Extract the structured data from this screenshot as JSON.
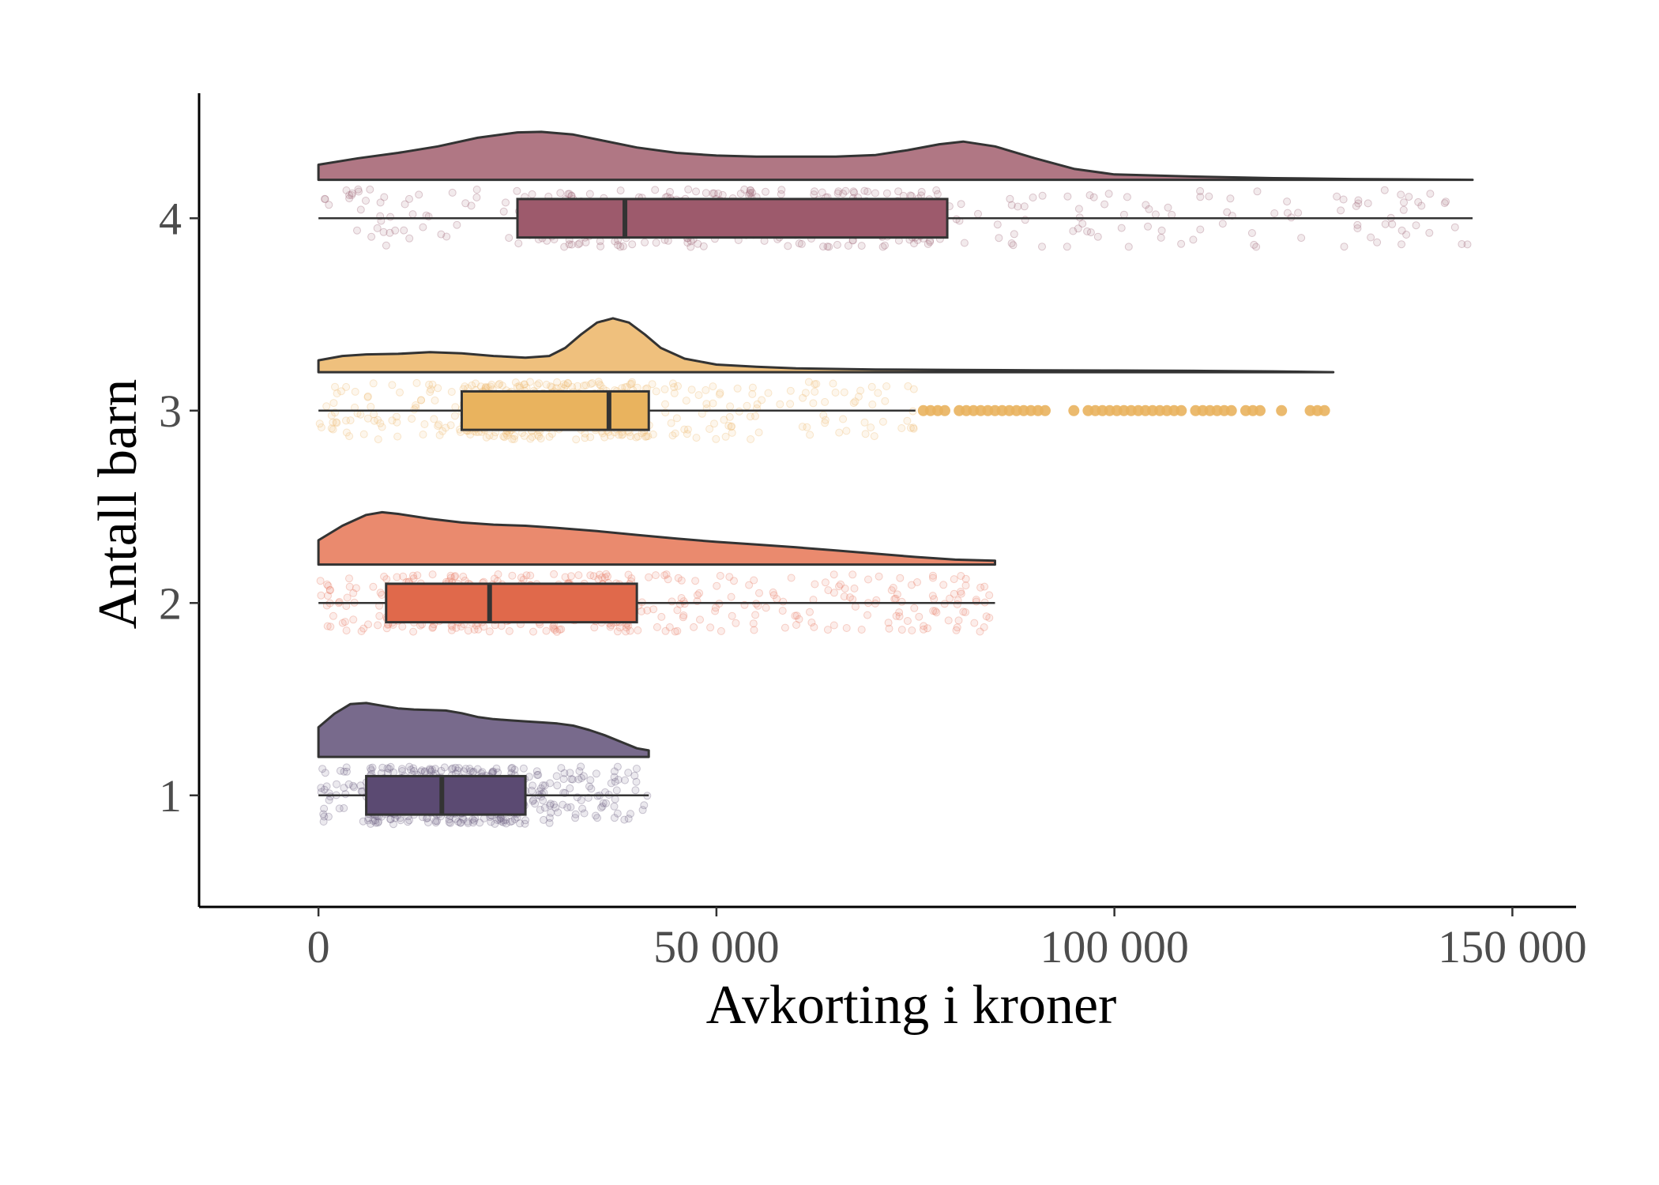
{
  "chart_data": {
    "type": "raincloud",
    "xlabel": "Avkorting i kroner",
    "ylabel": "Antall barn",
    "xlim": [
      -15000,
      158000
    ],
    "ylim": [
      0.42,
      4.65
    ],
    "x_ticks": [
      0,
      50000,
      100000,
      150000
    ],
    "x_tick_labels": [
      "0",
      "50 000",
      "100 000",
      "150 000"
    ],
    "y_ticks": [
      1,
      2,
      3,
      4
    ],
    "y_tick_labels": [
      "1",
      "2",
      "3",
      "4"
    ],
    "grid": false,
    "legend": "none",
    "series": [
      {
        "group": 1,
        "fill": "#786a8c",
        "box_fill": "#5b4a72",
        "point_color": "#6f6385",
        "whisker": [
          0,
          41500
        ],
        "box": {
          "q1": 6000,
          "median": 15500,
          "q3": 26000
        },
        "density": [
          [
            0,
            0.55
          ],
          [
            2000,
            0.8
          ],
          [
            4000,
            0.98
          ],
          [
            6000,
            1.0
          ],
          [
            8000,
            0.95
          ],
          [
            10000,
            0.9
          ],
          [
            12000,
            0.88
          ],
          [
            14000,
            0.87
          ],
          [
            16000,
            0.86
          ],
          [
            18000,
            0.81
          ],
          [
            20000,
            0.74
          ],
          [
            22000,
            0.7
          ],
          [
            24000,
            0.68
          ],
          [
            26000,
            0.66
          ],
          [
            28000,
            0.64
          ],
          [
            30000,
            0.62
          ],
          [
            32000,
            0.58
          ],
          [
            34000,
            0.5
          ],
          [
            36000,
            0.4
          ],
          [
            38000,
            0.28
          ],
          [
            40000,
            0.16
          ],
          [
            41500,
            0.12
          ]
        ]
      },
      {
        "group": 2,
        "fill": "#ea8a6e",
        "box_fill": "#e0694b",
        "point_color": "#e7826a",
        "whisker": [
          0,
          85000
        ],
        "box": {
          "q1": 8500,
          "median": 21500,
          "q3": 40000
        },
        "density": [
          [
            0,
            0.45
          ],
          [
            3000,
            0.72
          ],
          [
            6000,
            0.92
          ],
          [
            8000,
            0.97
          ],
          [
            10000,
            0.94
          ],
          [
            14000,
            0.85
          ],
          [
            18000,
            0.78
          ],
          [
            22000,
            0.74
          ],
          [
            26000,
            0.72
          ],
          [
            30000,
            0.68
          ],
          [
            35000,
            0.62
          ],
          [
            40000,
            0.55
          ],
          [
            45000,
            0.48
          ],
          [
            50000,
            0.42
          ],
          [
            55000,
            0.37
          ],
          [
            60000,
            0.32
          ],
          [
            65000,
            0.26
          ],
          [
            70000,
            0.2
          ],
          [
            75000,
            0.14
          ],
          [
            80000,
            0.09
          ],
          [
            85000,
            0.07
          ]
        ]
      },
      {
        "group": 3,
        "fill": "#efc07d",
        "box_fill": "#e9b35e",
        "point_color": "#efbe79",
        "whisker": [
          0,
          75000
        ],
        "box": {
          "q1": 18000,
          "median": 36500,
          "q3": 41500
        },
        "outliers_range": [
          76000,
          127000
        ],
        "density": [
          [
            0,
            0.22
          ],
          [
            3000,
            0.3
          ],
          [
            6000,
            0.33
          ],
          [
            10000,
            0.34
          ],
          [
            14000,
            0.37
          ],
          [
            18000,
            0.35
          ],
          [
            22000,
            0.3
          ],
          [
            26000,
            0.27
          ],
          [
            29000,
            0.3
          ],
          [
            31000,
            0.45
          ],
          [
            33000,
            0.7
          ],
          [
            35000,
            0.92
          ],
          [
            37000,
            1.0
          ],
          [
            39000,
            0.92
          ],
          [
            41000,
            0.7
          ],
          [
            43000,
            0.45
          ],
          [
            46000,
            0.25
          ],
          [
            50000,
            0.14
          ],
          [
            55000,
            0.1
          ],
          [
            60000,
            0.07
          ],
          [
            70000,
            0.05
          ],
          [
            80000,
            0.04
          ],
          [
            90000,
            0.035
          ],
          [
            100000,
            0.03
          ],
          [
            110000,
            0.025
          ],
          [
            120000,
            0.015
          ],
          [
            127500,
            0.0
          ]
        ]
      },
      {
        "group": 4,
        "fill": "#b07784",
        "box_fill": "#9d5a6c",
        "point_color": "#a0697a",
        "whisker": [
          0,
          145000
        ],
        "box": {
          "q1": 25000,
          "median": 38500,
          "q3": 79000
        },
        "density": [
          [
            0,
            0.28
          ],
          [
            5000,
            0.4
          ],
          [
            10000,
            0.5
          ],
          [
            15000,
            0.62
          ],
          [
            20000,
            0.78
          ],
          [
            25000,
            0.88
          ],
          [
            28000,
            0.89
          ],
          [
            32000,
            0.84
          ],
          [
            36000,
            0.72
          ],
          [
            40000,
            0.6
          ],
          [
            45000,
            0.5
          ],
          [
            50000,
            0.45
          ],
          [
            55000,
            0.43
          ],
          [
            60000,
            0.43
          ],
          [
            65000,
            0.43
          ],
          [
            70000,
            0.46
          ],
          [
            74000,
            0.55
          ],
          [
            78000,
            0.66
          ],
          [
            81000,
            0.71
          ],
          [
            85000,
            0.62
          ],
          [
            90000,
            0.4
          ],
          [
            95000,
            0.2
          ],
          [
            100000,
            0.1
          ],
          [
            110000,
            0.06
          ],
          [
            120000,
            0.03
          ],
          [
            130000,
            0.015
          ],
          [
            145000,
            0.0
          ]
        ]
      }
    ]
  }
}
